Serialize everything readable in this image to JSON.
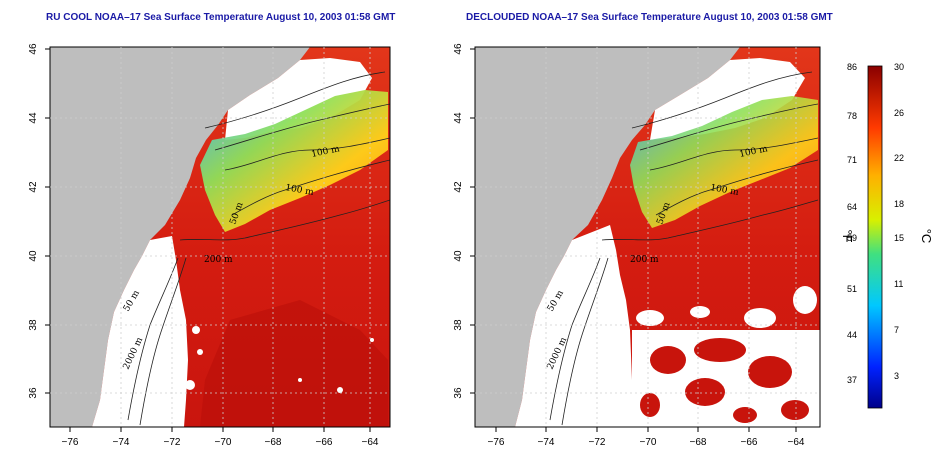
{
  "panels": [
    {
      "title": "RU COOL NOAA–17 Sea Surface Temperature August 10, 2003 01:58 GMT",
      "variant": "cloudy"
    },
    {
      "title": "DECLOUDED NOAA–17 Sea Surface Temperature August 10, 2003 01:58 GMT",
      "variant": "declouded"
    }
  ],
  "axes": {
    "x_ticks": [
      "−76",
      "−74",
      "−72",
      "−70",
      "−68",
      "−66",
      "−64"
    ],
    "y_ticks": [
      "46",
      "44",
      "42",
      "40",
      "38",
      "36"
    ]
  },
  "contour_labels": [
    "100 m",
    "100 m",
    "50 m",
    "200 m",
    "50 m",
    "2000 m"
  ],
  "colorbar": {
    "fahrenheit_ticks": [
      "86",
      "78",
      "71",
      "64",
      "59",
      "51",
      "44",
      "37"
    ],
    "celsius_ticks": [
      "30",
      "26",
      "22",
      "18",
      "15",
      "11",
      "7",
      "3"
    ],
    "fahrenheit_unit": "°F",
    "celsius_unit": "°C",
    "range_c": [
      0,
      30
    ]
  },
  "colors": {
    "land": "#bebebe",
    "cloud_mask": "#ffffff",
    "warm": "#d31a0e",
    "hot": "#b00f0a",
    "title": "#1a1aa6"
  }
}
